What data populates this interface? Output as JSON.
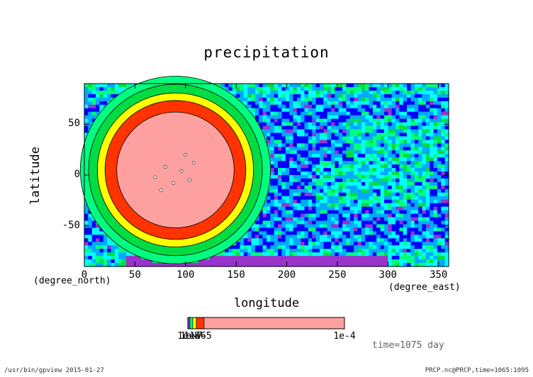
{
  "chart_data": {
    "type": "heatmap",
    "title": "precipitation",
    "xlabel": "longitude",
    "ylabel": "latitude",
    "x_unit": "(degree_east)",
    "y_unit": "(degree_north)",
    "xlim": [
      0,
      360
    ],
    "ylim": [
      -90,
      90
    ],
    "x_ticks": [
      0,
      50,
      100,
      150,
      200,
      250,
      300,
      350
    ],
    "y_ticks": [
      -50,
      0,
      50
    ],
    "field_center": {
      "lon": 90,
      "lat": 5
    },
    "contour_levels": [
      {
        "level": "background-0",
        "color": "#9933cc"
      },
      {
        "level": "background-1",
        "color": "#0000ff"
      },
      {
        "level": "background-2",
        "color": "#00aaff"
      },
      {
        "level": "background-3",
        "color": "#00ffff"
      },
      {
        "level": "band-1",
        "color": "#00ff80"
      },
      {
        "level": "band-2",
        "color": "#00dd44"
      },
      {
        "level": "band-3",
        "color": "#ffff00"
      },
      {
        "level": "band-4",
        "color": "#ff3300"
      },
      {
        "level": "max",
        "color": "#ffa0a0"
      }
    ],
    "colorbar": {
      "labels": [
        "1e-8",
        "1e-7",
        "1e-6",
        "1e-5",
        "1e-4"
      ],
      "label_overlap_text": "1e-8"
    },
    "annotation": "time=1075 day"
  },
  "footer": {
    "left": "/usr/bin/gpview  2015-01-27",
    "right": "PRCP.nc@PRCP,time=1065:1095"
  }
}
